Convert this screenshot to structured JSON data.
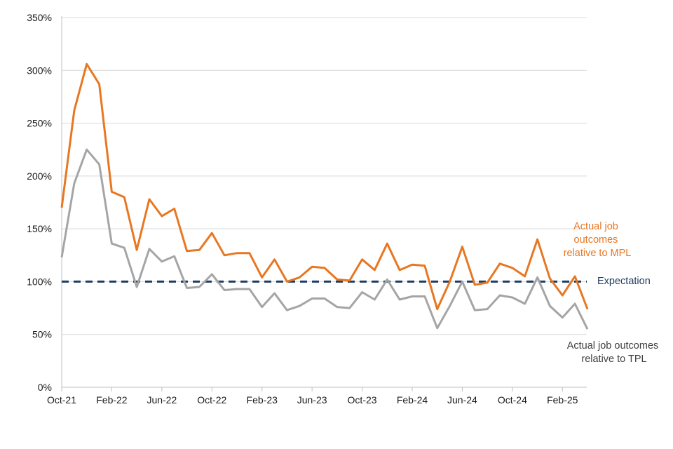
{
  "chart_data": {
    "type": "line",
    "title": "",
    "xlabel": "",
    "ylabel": "",
    "ylim": [
      0,
      350
    ],
    "yticks": [
      0,
      50,
      100,
      150,
      200,
      250,
      300,
      350
    ],
    "ytick_labels": [
      "0%",
      "50%",
      "100%",
      "150%",
      "200%",
      "250%",
      "300%",
      "350%"
    ],
    "x_start": "Oct-21",
    "x_ticks": [
      {
        "index": 0,
        "label": "Oct-21"
      },
      {
        "index": 4,
        "label": "Feb-22"
      },
      {
        "index": 8,
        "label": "Jun-22"
      },
      {
        "index": 12,
        "label": "Oct-22"
      },
      {
        "index": 16,
        "label": "Feb-23"
      },
      {
        "index": 20,
        "label": "Jun-23"
      },
      {
        "index": 24,
        "label": "Oct-23"
      },
      {
        "index": 28,
        "label": "Feb-24"
      },
      {
        "index": 32,
        "label": "Jun-24"
      },
      {
        "index": 36,
        "label": "Oct-24"
      },
      {
        "index": 40,
        "label": "Feb-25"
      }
    ],
    "grid": "horizontal",
    "legend": "none (direct labels at right)",
    "series": [
      {
        "name": "Actual job outcomes relative to MPL",
        "label_lines": [
          "Actual job",
          "outcomes",
          "relative to MPL"
        ],
        "color": "#e87722",
        "values": [
          170,
          262,
          306,
          287,
          185,
          180,
          130,
          178,
          162,
          169,
          129,
          130,
          146,
          125,
          127,
          127,
          104,
          121,
          100,
          104,
          114,
          113,
          102,
          101,
          121,
          111,
          136,
          111,
          116,
          115,
          74,
          100,
          133,
          97,
          99,
          117,
          113,
          105,
          140,
          103,
          87,
          105,
          74
        ]
      },
      {
        "name": "Actual job outcomes relative to TPL",
        "label_lines": [
          "Actual job outcomes",
          "relative to TPL"
        ],
        "color": "#a5a5a5",
        "values": [
          123,
          193,
          225,
          211,
          136,
          132,
          95,
          131,
          119,
          124,
          94,
          95,
          107,
          92,
          93,
          93,
          76,
          89,
          73,
          77,
          84,
          84,
          76,
          75,
          90,
          83,
          102,
          83,
          86,
          86,
          56,
          77,
          100,
          73,
          74,
          87,
          85,
          79,
          104,
          77,
          66,
          79,
          55
        ]
      },
      {
        "name": "Expectation",
        "label_lines": [
          "Expectation"
        ],
        "color": "#1f3d63",
        "dashed": true,
        "values": [
          100,
          100
        ]
      }
    ]
  }
}
